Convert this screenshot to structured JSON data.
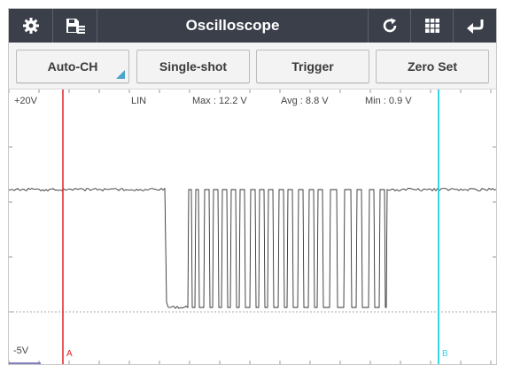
{
  "app": {
    "title": "Oscilloscope"
  },
  "toolbar": {
    "auto_ch": "Auto-CH",
    "single_shot": "Single-shot",
    "trigger": "Trigger",
    "zero_set": "Zero Set"
  },
  "scope": {
    "y_top_label": "+20V",
    "y_bottom_label": "-5V",
    "mode": "LIN",
    "max_label": "Max : 12.2 V",
    "avg_label": "Avg : 8.8 V",
    "min_label": "Min : 0.9 V",
    "cursor_a_label": "A",
    "cursor_b_label": "B",
    "cursor_a_color": "#e02020",
    "cursor_b_color": "#35d6e6",
    "trace_color": "#333333"
  },
  "icons": {
    "settings": "gear-icon",
    "save": "save-list-icon",
    "refresh": "refresh-icon",
    "grid": "grid-icon",
    "back": "back-arrow-icon"
  }
}
